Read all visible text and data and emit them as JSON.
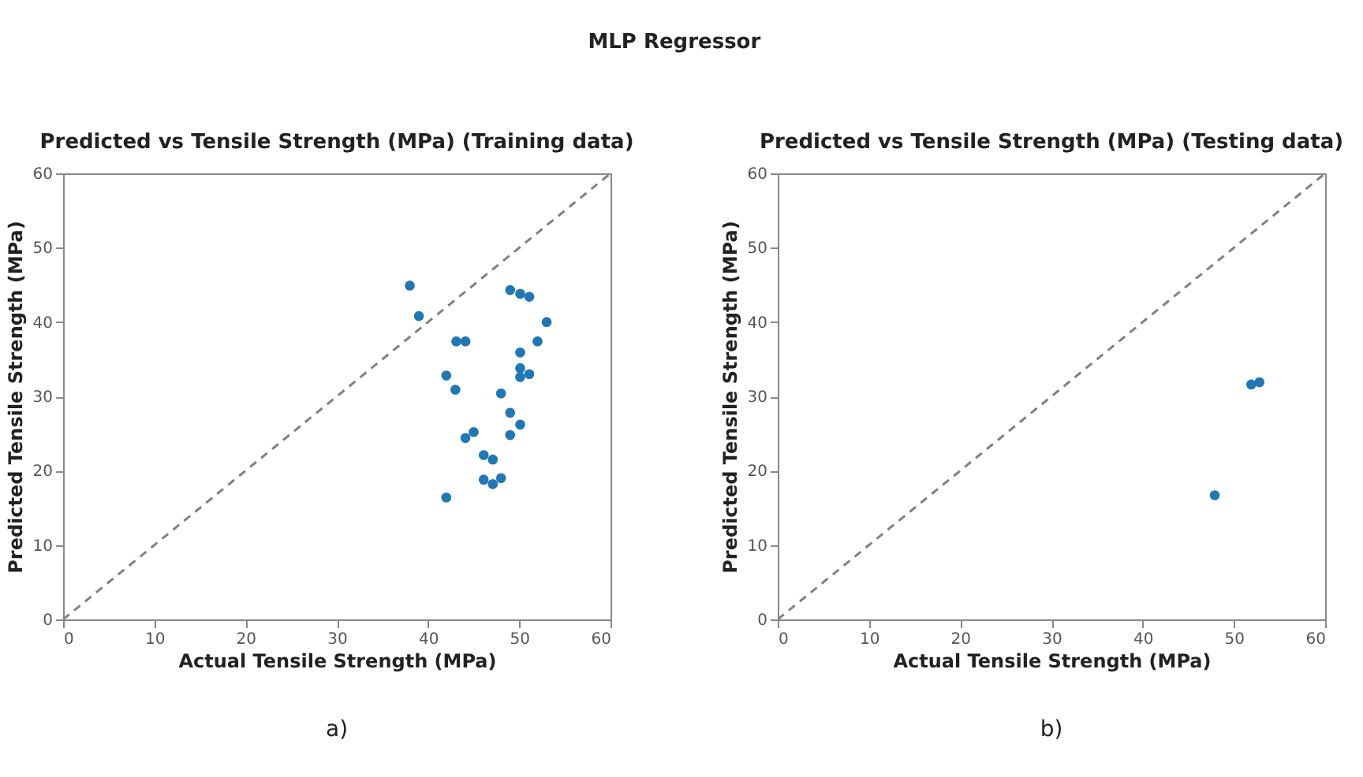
{
  "chart_data": [
    {
      "type": "scatter",
      "title": "Predicted vs Tensile Strength (MPa) (Training data)",
      "xlabel": "Actual Tensile Strength (MPa)",
      "ylabel": "Predicted Tensile Strength (MPa)",
      "annotations": [
        "MLP Regressor",
        "a)"
      ],
      "xlim": [
        0,
        60
      ],
      "ylim": [
        0,
        60
      ],
      "xticks": [
        0,
        10,
        20,
        30,
        40,
        50,
        60
      ],
      "yticks": [
        0,
        10,
        20,
        30,
        40,
        50,
        60
      ],
      "grid": false,
      "marker": "circle",
      "series": [
        {
          "type": "line",
          "color": "#808080",
          "line_style": "dashed",
          "marker": "none",
          "x": [
            0,
            60
          ],
          "values": [
            0,
            60
          ]
        },
        {
          "color": "#1f77b4",
          "x": [
            38.0,
            39.0,
            49.0,
            50.1,
            51.1,
            53.0,
            43.1,
            44.1,
            52.0,
            50.1,
            50.1,
            50.1,
            51.1,
            42.0,
            43.0,
            48.0,
            49.0,
            50.1,
            49.0,
            45.0,
            44.1,
            46.1,
            47.1,
            46.1,
            47.1,
            48.0,
            42.0
          ],
          "values": [
            44.9,
            40.8,
            44.3,
            43.8,
            43.4,
            40.0,
            37.4,
            37.4,
            37.4,
            35.9,
            33.8,
            32.6,
            33.0,
            32.8,
            30.9,
            30.4,
            27.8,
            26.2,
            24.8,
            25.2,
            24.4,
            22.1,
            21.5,
            18.8,
            18.2,
            19.0,
            16.4
          ]
        }
      ]
    },
    {
      "type": "scatter",
      "title": "Predicted vs Tensile Strength (MPa) (Testing data)",
      "xlabel": "Actual Tensile Strength (MPa)",
      "ylabel": "Predicted Tensile Strength (MPa)",
      "annotations": [
        "b)"
      ],
      "xlim": [
        0,
        60
      ],
      "ylim": [
        0,
        60
      ],
      "xticks": [
        0,
        10,
        20,
        30,
        40,
        50,
        60
      ],
      "yticks": [
        0,
        10,
        20,
        30,
        40,
        50,
        60
      ],
      "grid": false,
      "marker": "circle",
      "series": [
        {
          "type": "line",
          "color": "#808080",
          "line_style": "dashed",
          "marker": "none",
          "x": [
            0,
            60
          ],
          "values": [
            0,
            60
          ]
        },
        {
          "color": "#1f77b4",
          "x": [
            51.9,
            52.8,
            47.9
          ],
          "values": [
            31.6,
            31.9,
            16.7
          ]
        }
      ]
    }
  ]
}
